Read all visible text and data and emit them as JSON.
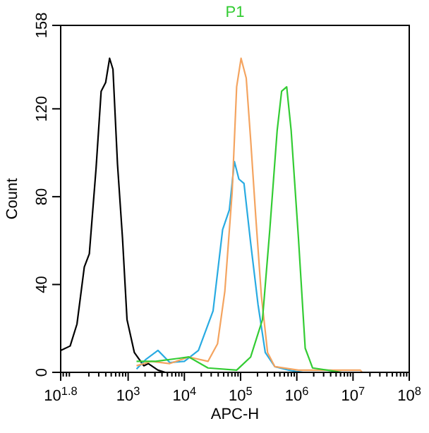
{
  "chart_data": {
    "type": "line",
    "title": "P1",
    "xlabel": "APC-H",
    "ylabel": "Count",
    "log": "x",
    "xlim": [
      63.0957,
      100000000
    ],
    "xticks": [
      {
        "value": 63.0957,
        "label": "10$^{1.8}$"
      },
      {
        "value": 1000,
        "label": "10$^{3}$"
      },
      {
        "value": 10000,
        "label": "10$^{4}$"
      },
      {
        "value": 100000,
        "label": "10$^{5}$"
      },
      {
        "value": 1000000,
        "label": "10$^{6}$"
      },
      {
        "value": 10000000,
        "label": "10$^{7}$"
      },
      {
        "value": 100000000,
        "label": "10$^{8}$"
      }
    ],
    "ylim": [
      0,
      158
    ],
    "yticks": [
      0,
      40,
      80,
      120,
      158
    ],
    "grid": false,
    "marker": "none",
    "line_style": "solid",
    "series": [
      {
        "color": "#000000",
        "x": [
          64,
          93,
          123,
          166,
          204,
          269,
          331,
          398,
          468,
          537,
          646,
          794,
          955,
          1290,
          1900,
          2290,
          3390,
          4570
        ],
        "values": [
          10,
          12,
          22,
          48,
          54,
          93,
          128,
          132,
          143,
          138,
          95,
          61,
          24,
          9,
          3,
          4,
          1,
          0
        ]
      },
      {
        "color": "#29abe2",
        "x": [
          1410,
          2090,
          3390,
          5500,
          10000,
          17800,
          32400,
          47900,
          63100,
          77600,
          93300,
          115000,
          151000,
          204000,
          275000,
          407000,
          724000,
          1290000
        ],
        "values": [
          1.5,
          6,
          10,
          4.5,
          5,
          10,
          28,
          65,
          74,
          96,
          88,
          86,
          59,
          31,
          9,
          2.6,
          1,
          0
        ]
      },
      {
        "color": "#f4a460",
        "x": [
          1410,
          2570,
          5500,
          12000,
          26300,
          38900,
          52500,
          70800,
          85100,
          102000,
          126000,
          151000,
          186000,
          234000,
          302000,
          407000,
          1070000,
          13500000,
          14500000
        ],
        "values": [
          3,
          5,
          4,
          7,
          5,
          13,
          37,
          82,
          130,
          143,
          134,
          106,
          71,
          35,
          9,
          2.6,
          1,
          1,
          0
        ]
      },
      {
        "color": "#33cc33",
        "x": [
          1410,
          3090,
          12000,
          26300,
          85100,
          151000,
          245000,
          331000,
          447000,
          537000,
          661000,
          794000,
          1070000,
          1410000,
          1910000,
          3470000,
          6310000
        ],
        "values": [
          5,
          5,
          7,
          2,
          1,
          7,
          24,
          65,
          110,
          128,
          130,
          110,
          61,
          11,
          2,
          1,
          0
        ]
      }
    ]
  }
}
